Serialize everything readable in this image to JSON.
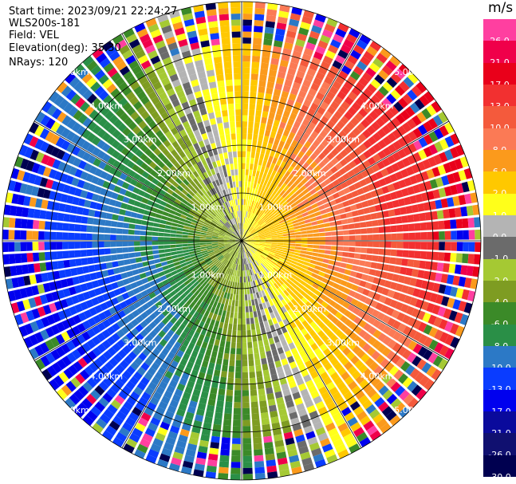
{
  "header": {
    "start_time": "Start time: 2023/09/21 22:24:27",
    "instrument": "WLS200s-181",
    "field": "Field: VEL",
    "elevation": "Elevation(deg): 35.30",
    "nrays": "NRays: 120"
  },
  "range_rings": {
    "labels": [
      "1.00km",
      "2.00km",
      "3.00km",
      "4.00km",
      "5.00km"
    ]
  },
  "colorbar": {
    "unit": "m/s",
    "levels": [
      {
        "label": "26.0",
        "color": "#ff3fa0"
      },
      {
        "label": "21.0",
        "color": "#f0004a"
      },
      {
        "label": "17.0",
        "color": "#e9001a"
      },
      {
        "label": "13.0",
        "color": "#f23030"
      },
      {
        "label": "10.0",
        "color": "#f45a3c"
      },
      {
        "label": "8.0",
        "color": "#fb7a55"
      },
      {
        "label": "6.0",
        "color": "#fb9a1c"
      },
      {
        "label": "2.0",
        "color": "#ffc800"
      },
      {
        "label": "1.0",
        "color": "#ffff1a"
      },
      {
        "label": "0.0",
        "color": "#b4b4b4"
      },
      {
        "label": "-1.0",
        "color": "#6b6b6b"
      },
      {
        "label": "-2.0",
        "color": "#a5c933"
      },
      {
        "label": "-4.0",
        "color": "#7e9c22"
      },
      {
        "label": "-6.0",
        "color": "#3b8a28"
      },
      {
        "label": "-8.0",
        "color": "#2a8f47"
      },
      {
        "label": "-10.0",
        "color": "#2c79c6"
      },
      {
        "label": "-13.0",
        "color": "#0a3cff"
      },
      {
        "label": "-17.0",
        "color": "#0000ee"
      },
      {
        "label": "-21.0",
        "color": "#0a0a9c"
      },
      {
        "label": "-26.0",
        "color": "#101070"
      },
      {
        "label": "-30.0",
        "color": "#000050"
      }
    ]
  }
}
